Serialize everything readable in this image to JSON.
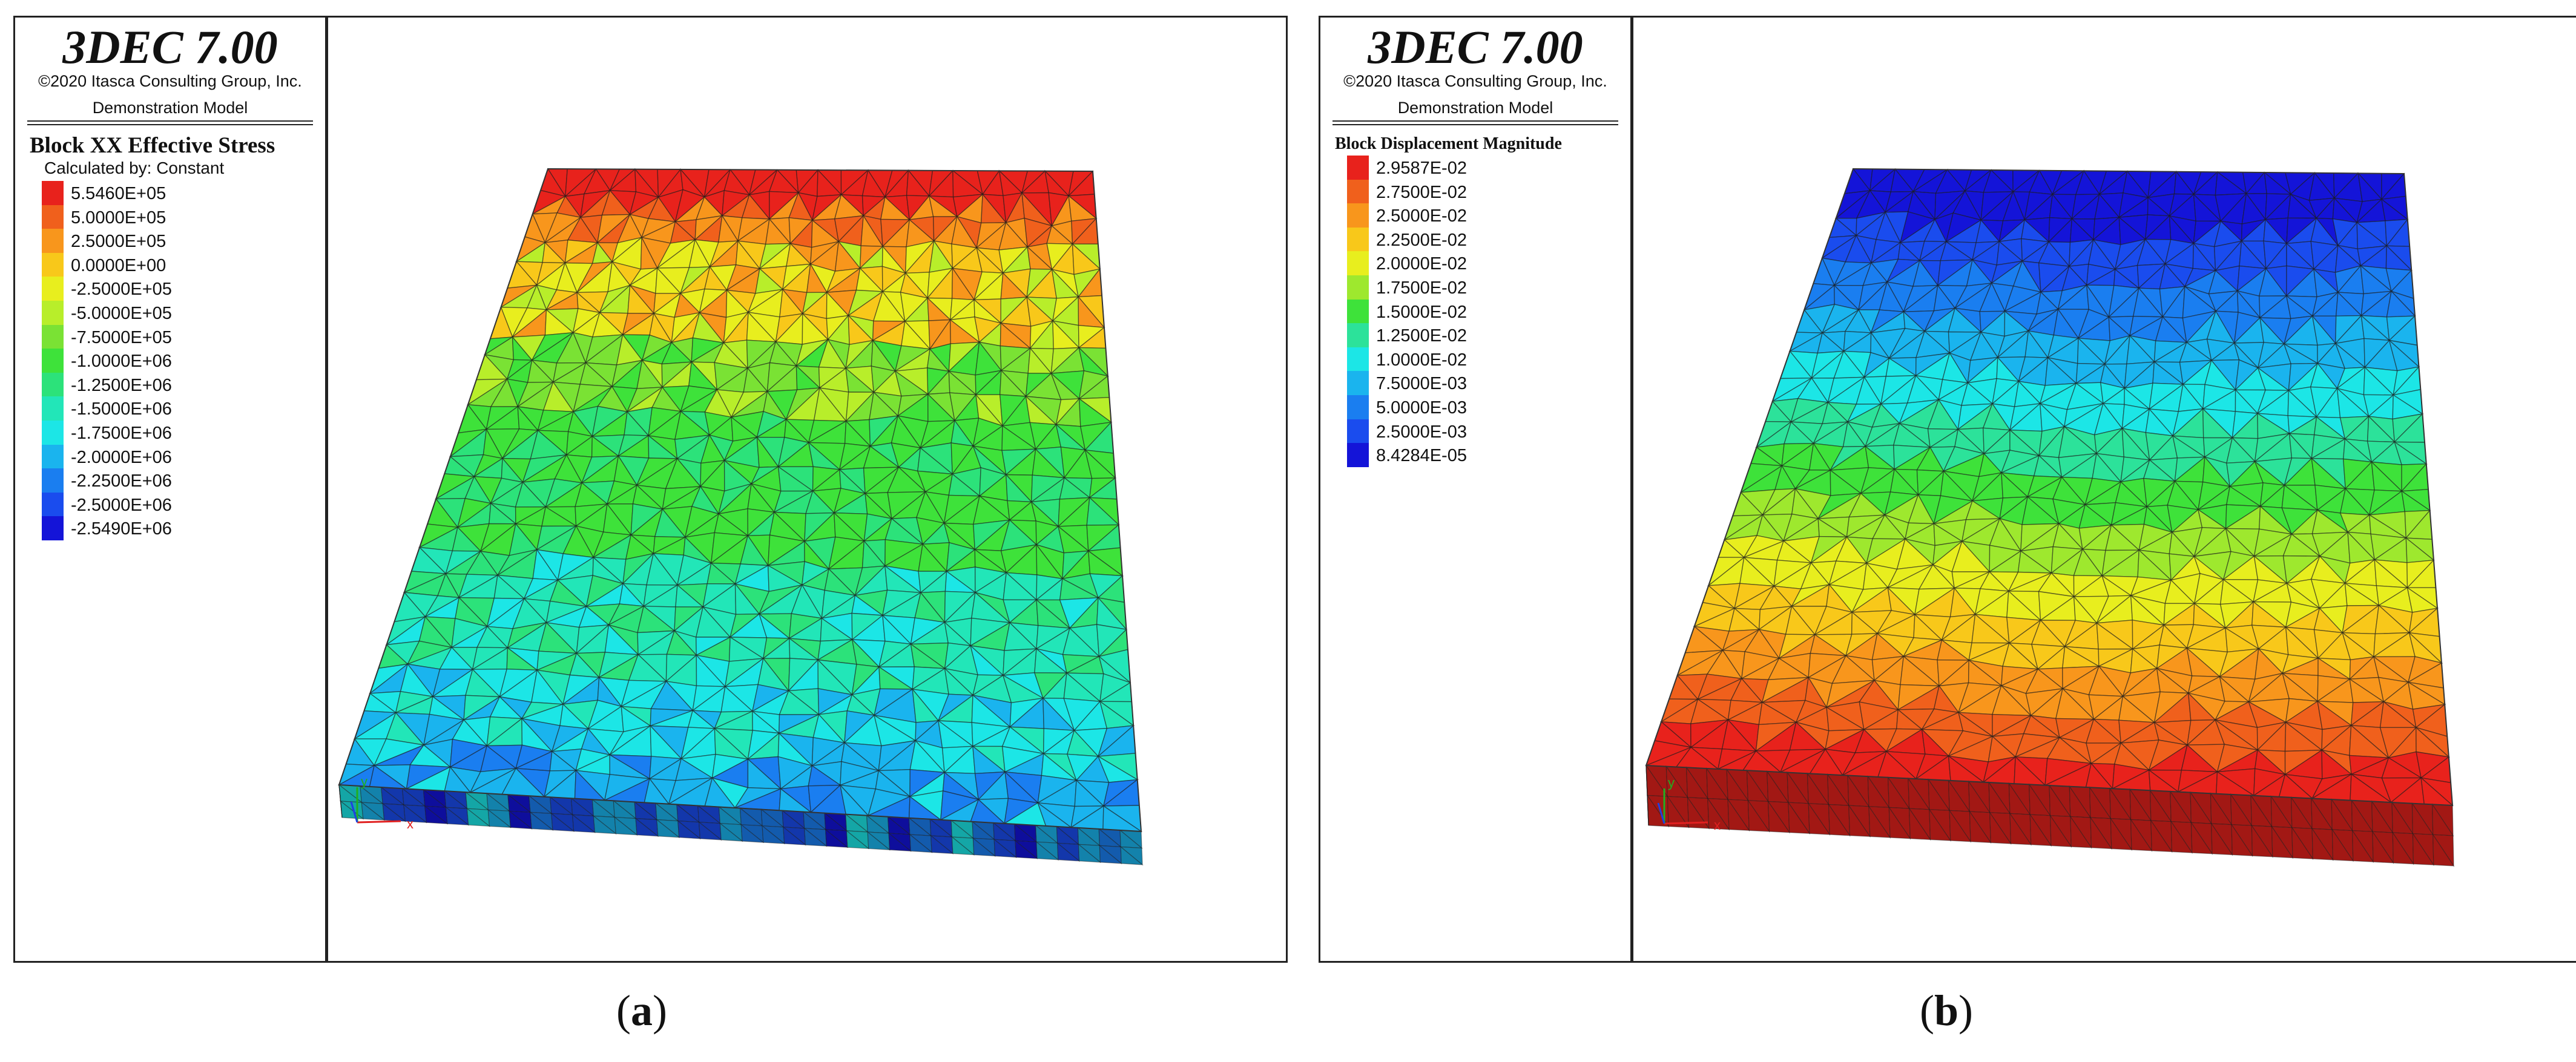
{
  "panels": [
    {
      "app_title": "3DEC 7.00",
      "copyright": "©2020 Itasca Consulting Group, Inc.",
      "model_label": "Demonstration Model",
      "legend_title": "Block XX Effective Stress",
      "legend_subtitle": "Calculated by: Constant",
      "legend": [
        {
          "label": "5.5460E+05",
          "color": "#e8221c"
        },
        {
          "label": "5.0000E+05",
          "color": "#f0601c"
        },
        {
          "label": "2.5000E+05",
          "color": "#f8961c"
        },
        {
          "label": "0.0000E+00",
          "color": "#f8c81a"
        },
        {
          "label": "-2.5000E+05",
          "color": "#e8ee1e"
        },
        {
          "label": "-5.0000E+05",
          "color": "#b8ee2a"
        },
        {
          "label": "-7.5000E+05",
          "color": "#7ae234"
        },
        {
          "label": "-1.0000E+06",
          "color": "#3ee23a"
        },
        {
          "label": "-1.2500E+06",
          "color": "#2ce27a"
        },
        {
          "label": "-1.5000E+06",
          "color": "#22e6b8"
        },
        {
          "label": "-1.7500E+06",
          "color": "#1ce6e6"
        },
        {
          "label": "-2.0000E+06",
          "color": "#1ab4ee"
        },
        {
          "label": "-2.2500E+06",
          "color": "#1a7ef0"
        },
        {
          "label": "-2.5000E+06",
          "color": "#1a4cee"
        },
        {
          "label": "-2.5490E+06",
          "color": "#1414d8"
        }
      ],
      "axis_x_label": "x",
      "axis_y_label": "y",
      "caption_letter": "a"
    },
    {
      "app_title": "3DEC 7.00",
      "copyright": "©2020 Itasca Consulting Group, Inc.",
      "model_label": "Demonstration Model",
      "legend_title": "Block Displacement Magnitude",
      "legend": [
        {
          "label": "2.9587E-02",
          "color": "#e8221c"
        },
        {
          "label": "2.7500E-02",
          "color": "#f0601c"
        },
        {
          "label": "2.5000E-02",
          "color": "#f8961c"
        },
        {
          "label": "2.2500E-02",
          "color": "#f8c81a"
        },
        {
          "label": "2.0000E-02",
          "color": "#e8ee1e"
        },
        {
          "label": "1.7500E-02",
          "color": "#9ee82e"
        },
        {
          "label": "1.5000E-02",
          "color": "#3ee23a"
        },
        {
          "label": "1.2500E-02",
          "color": "#2ce29a"
        },
        {
          "label": "1.0000E-02",
          "color": "#1ce6e6"
        },
        {
          "label": "7.5000E-03",
          "color": "#1ab4ee"
        },
        {
          "label": "5.0000E-03",
          "color": "#1a7ef0"
        },
        {
          "label": "2.5000E-03",
          "color": "#1a4cee"
        },
        {
          "label": "8.4284E-05",
          "color": "#1414d8"
        }
      ],
      "axis_x_label": "x",
      "axis_y_label": "y",
      "caption_letter": "b"
    }
  ],
  "colors": {
    "frame": "#222222",
    "mesh_line": "#1a1a1a",
    "axis_x": "#e02020",
    "axis_y": "#20b020",
    "axis_z": "#2040e0"
  }
}
